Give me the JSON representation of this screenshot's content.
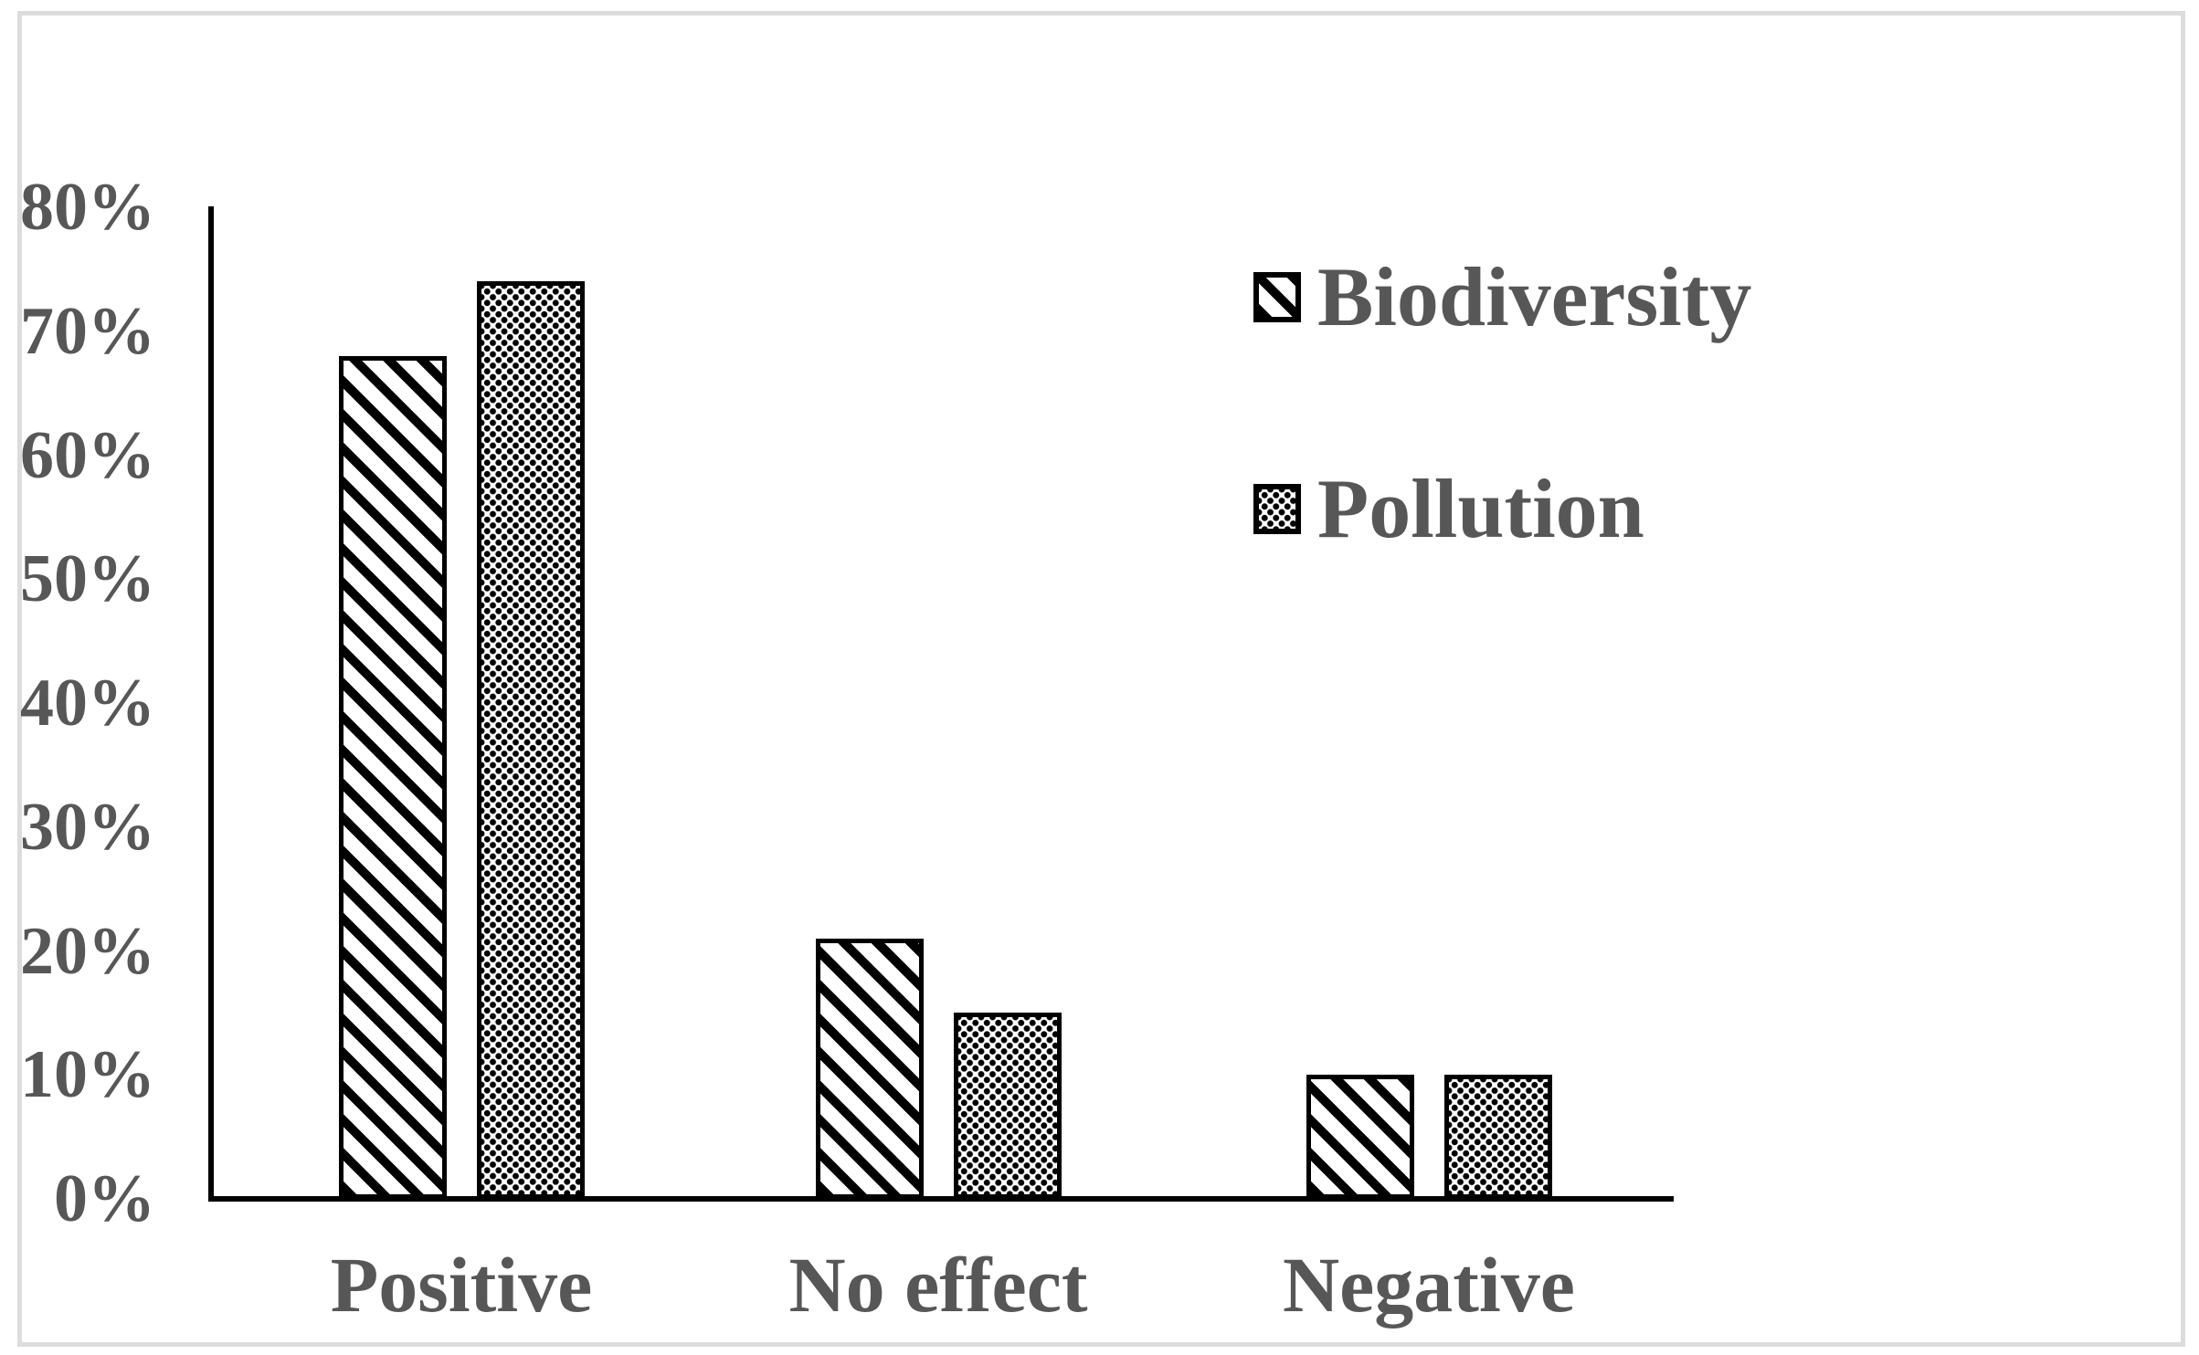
{
  "chart_data": {
    "type": "bar",
    "title": "",
    "categories": [
      "Positive",
      "No effect",
      "Negative"
    ],
    "series": [
      {
        "name": "Biodiversity",
        "pattern": "diagonal-stripes",
        "values": [
          68,
          21,
          10
        ]
      },
      {
        "name": "Pollution",
        "pattern": "square-dots",
        "values": [
          74,
          15,
          10
        ]
      }
    ],
    "y_axis": {
      "unit": "%",
      "min": 0,
      "max": 80,
      "tick_step": 10,
      "tick_values": [
        0,
        10,
        20,
        30,
        40,
        50,
        60,
        70,
        80
      ],
      "tick_labels": [
        "0%",
        "10%",
        "20%",
        "30%",
        "40%",
        "50%",
        "60%",
        "70%",
        "80%"
      ]
    },
    "x_axis": {
      "label": ""
    },
    "legend": {
      "position": "upper-right"
    },
    "grid": false,
    "colors": {
      "bar_foreground": "#000000",
      "bar_background": "#ffffff",
      "text": "#575757",
      "axis": "#000000",
      "frame_border": "#dcdcdc",
      "background": "#ffffff"
    }
  }
}
